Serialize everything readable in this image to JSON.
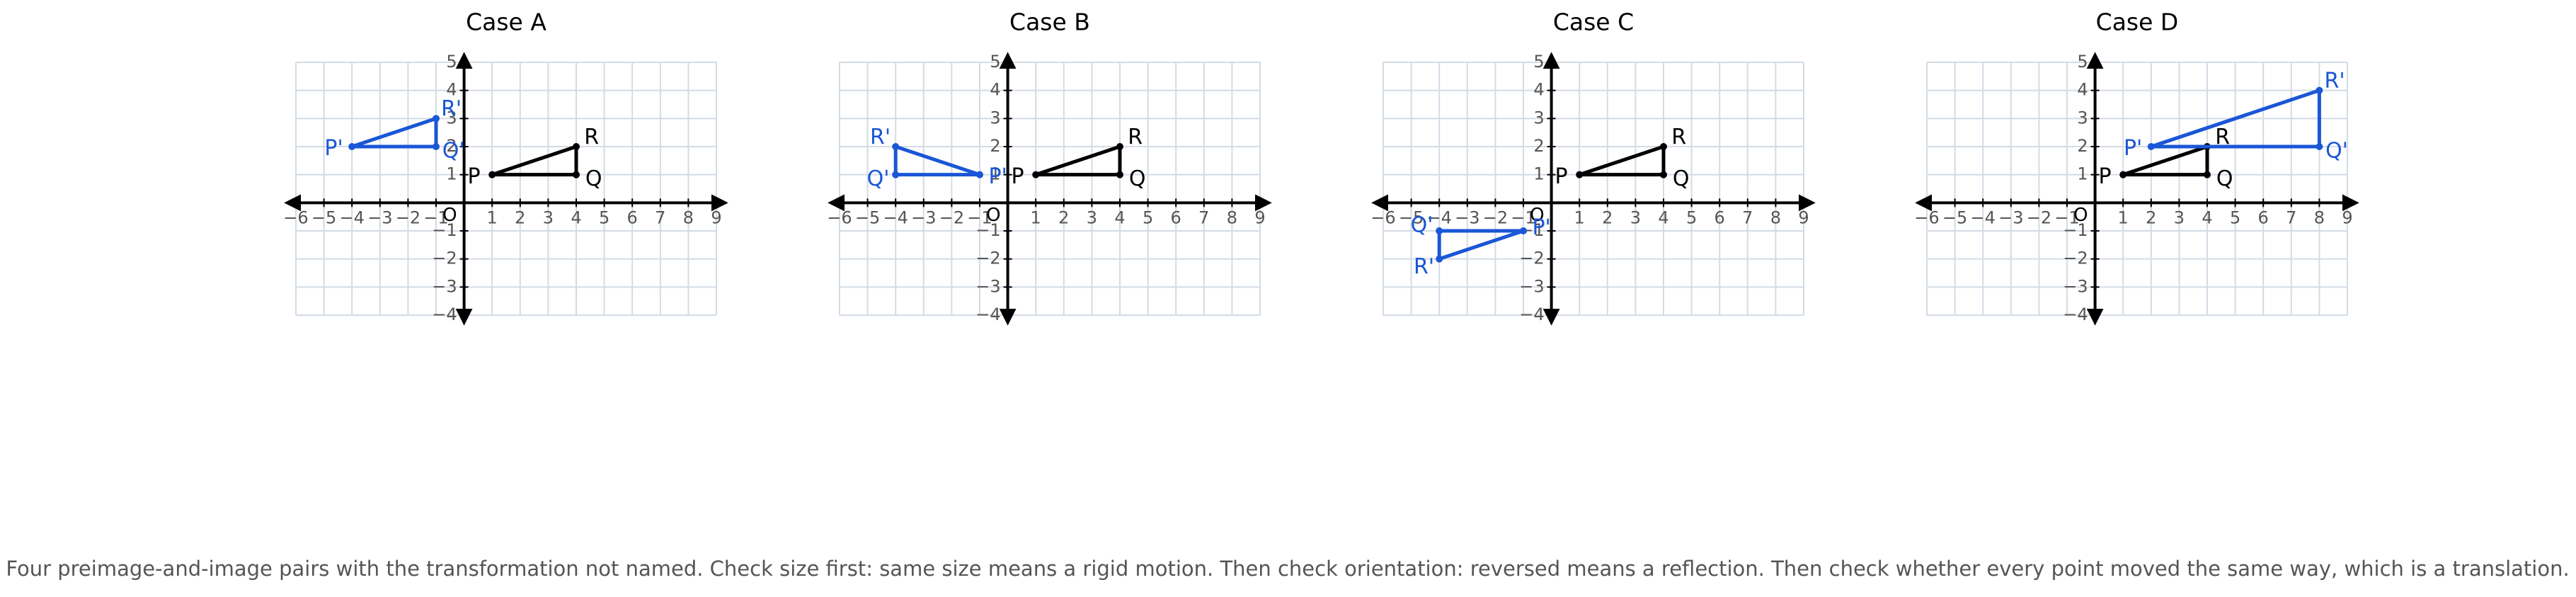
{
  "axes": {
    "xlim": [
      -6,
      9
    ],
    "ylim": [
      -4,
      5
    ],
    "origin_label": "O",
    "grid": true,
    "xticks": [
      {
        "value": -6,
        "label": "−6"
      },
      {
        "value": -5,
        "label": "−5"
      },
      {
        "value": -4,
        "label": "−4"
      },
      {
        "value": -3,
        "label": "−3"
      },
      {
        "value": -2,
        "label": "−2"
      },
      {
        "value": -1,
        "label": "−1"
      },
      1,
      2,
      3,
      4,
      5,
      6,
      7,
      8,
      9
    ],
    "yticks": [
      {
        "value": -4,
        "label": "−4"
      },
      {
        "value": -3,
        "label": "−3"
      },
      {
        "value": -2,
        "label": "−2"
      },
      {
        "value": -1,
        "label": "−1"
      },
      1,
      2,
      3,
      4,
      5
    ]
  },
  "panels": [
    {
      "title": "Case A",
      "shapes": [
        {
          "color": "#000000",
          "points": [
            {
              "label": "P",
              "x": 1,
              "y": 1
            },
            {
              "label": "Q",
              "x": 4,
              "y": 1
            },
            {
              "label": "R",
              "x": 4,
              "y": 2
            }
          ]
        },
        {
          "color": "#1a56d6",
          "points": [
            {
              "label": "P'",
              "x": -4,
              "y": 2
            },
            {
              "label": "Q'",
              "x": -1,
              "y": 2
            },
            {
              "label": "R'",
              "x": -1,
              "y": 3
            }
          ]
        }
      ]
    },
    {
      "title": "Case B",
      "shapes": [
        {
          "color": "#000000",
          "points": [
            {
              "label": "P",
              "x": 1,
              "y": 1
            },
            {
              "label": "Q",
              "x": 4,
              "y": 1
            },
            {
              "label": "R",
              "x": 4,
              "y": 2
            }
          ]
        },
        {
          "color": "#1a56d6",
          "points": [
            {
              "label": "P'",
              "x": -1,
              "y": 1
            },
            {
              "label": "Q'",
              "x": -4,
              "y": 1
            },
            {
              "label": "R'",
              "x": -4,
              "y": 2
            }
          ]
        }
      ]
    },
    {
      "title": "Case C",
      "shapes": [
        {
          "color": "#000000",
          "points": [
            {
              "label": "P",
              "x": 1,
              "y": 1
            },
            {
              "label": "Q",
              "x": 4,
              "y": 1
            },
            {
              "label": "R",
              "x": 4,
              "y": 2
            }
          ]
        },
        {
          "color": "#1a56d6",
          "points": [
            {
              "label": "P'",
              "x": -1,
              "y": -1
            },
            {
              "label": "Q'",
              "x": -4,
              "y": -1
            },
            {
              "label": "R'",
              "x": -4,
              "y": -2
            }
          ]
        }
      ]
    },
    {
      "title": "Case D",
      "shapes": [
        {
          "color": "#000000",
          "points": [
            {
              "label": "P",
              "x": 1,
              "y": 1
            },
            {
              "label": "Q",
              "x": 4,
              "y": 1
            },
            {
              "label": "R",
              "x": 4,
              "y": 2
            }
          ]
        },
        {
          "color": "#1a56d6",
          "points": [
            {
              "label": "P'",
              "x": 2,
              "y": 2
            },
            {
              "label": "Q'",
              "x": 8,
              "y": 2
            },
            {
              "label": "R'",
              "x": 8,
              "y": 4
            }
          ]
        }
      ]
    }
  ],
  "caption": "Four preimage-and-image pairs with the transformation not named. Check size first: same size means a rigid motion. Then check orientation: reversed means a reflection. Then check whether every point moved the same way, which is a translation."
}
